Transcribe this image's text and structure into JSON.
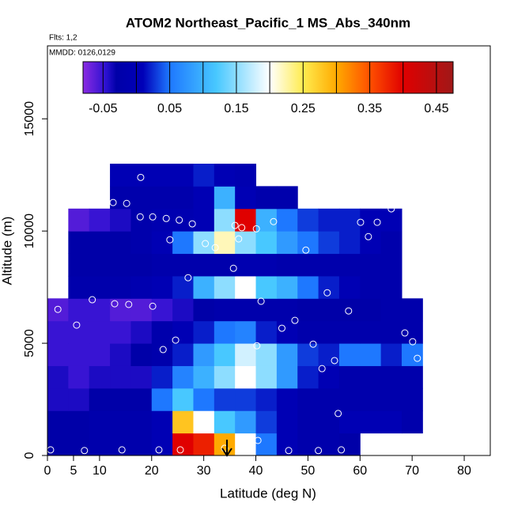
{
  "chart_data": {
    "type": "heatmap",
    "title": "ATOM2 Northeast_Pacific_1 MS_Abs_340nm",
    "notes": [
      "Flts: 1,2",
      "MMDD: 0126,0129"
    ],
    "x_label": "Latitude (deg N)",
    "y_label": "Altitude (m)",
    "xlim": [
      0,
      85
    ],
    "ylim": [
      0,
      18250
    ],
    "xticks": [
      0,
      5,
      10,
      20,
      30,
      40,
      50,
      60,
      70,
      80
    ],
    "yticks": [
      0,
      5000,
      10000,
      15000
    ],
    "clim": [
      -0.08,
      0.475
    ],
    "cticks": [
      -0.05,
      0.05,
      0.15,
      0.25,
      0.35,
      0.45
    ],
    "cdividers": [
      0,
      0.1,
      0.2,
      0.3,
      0.4
    ],
    "colormap": [
      [
        -0.08,
        "#8a2be2"
      ],
      [
        -0.045,
        "#2a10d0"
      ],
      [
        -0.03,
        "#0000a8"
      ],
      [
        0.01,
        "#0000b8"
      ],
      [
        0.05,
        "#1e78ff"
      ],
      [
        0.12,
        "#48c8ff"
      ],
      [
        0.2,
        "#ffffff"
      ],
      [
        0.25,
        "#ffec50"
      ],
      [
        0.3,
        "#ffaa00"
      ],
      [
        0.35,
        "#ff5000"
      ],
      [
        0.4,
        "#e00000"
      ],
      [
        0.475,
        "#a01818"
      ]
    ],
    "x_edges": [
      0,
      4,
      8,
      12,
      16,
      20,
      24,
      28,
      32,
      36,
      40,
      44,
      48,
      52,
      56,
      60,
      64,
      68,
      72
    ],
    "y_edges": [
      0,
      1000,
      2000,
      3000,
      4000,
      5000,
      6000,
      7000,
      8000,
      9000,
      10000,
      11000,
      12000,
      13000
    ],
    "z": [
      [
        -0.03,
        -0.03,
        -0.02,
        -0.02,
        -0.02,
        0.0,
        0.4,
        0.38,
        0.3,
        0.2,
        0.05,
        0.0,
        -0.02,
        -0.02,
        -0.03,
        null,
        null,
        null
      ],
      [
        -0.03,
        -0.03,
        -0.02,
        -0.02,
        -0.02,
        0.0,
        0.28,
        0.2,
        0.12,
        0.08,
        0.03,
        0.0,
        -0.02,
        -0.02,
        0.0,
        0.0,
        0.0,
        -0.02
      ],
      [
        -0.04,
        -0.04,
        -0.03,
        -0.03,
        -0.03,
        0.05,
        0.12,
        0.05,
        0.03,
        0.03,
        0.02,
        0.0,
        -0.02,
        -0.02,
        -0.02,
        -0.02,
        -0.02,
        -0.02
      ],
      [
        -0.04,
        -0.05,
        -0.04,
        -0.04,
        -0.04,
        0.02,
        0.06,
        0.1,
        0.15,
        0.2,
        0.15,
        0.08,
        0.02,
        0.0,
        -0.02,
        -0.02,
        -0.02,
        -0.02
      ],
      [
        -0.05,
        -0.05,
        -0.05,
        -0.04,
        -0.03,
        -0.02,
        0.02,
        0.08,
        0.12,
        0.18,
        0.15,
        0.08,
        0.03,
        0.02,
        0.05,
        0.05,
        0.02,
        0.05
      ],
      [
        -0.05,
        -0.05,
        -0.05,
        -0.05,
        -0.04,
        -0.02,
        0.0,
        0.02,
        0.05,
        0.06,
        0.02,
        0.0,
        -0.02,
        -0.02,
        -0.02,
        -0.02,
        -0.02,
        -0.02
      ],
      [
        -0.06,
        -0.05,
        -0.05,
        -0.06,
        -0.06,
        -0.05,
        -0.04,
        -0.03,
        -0.02,
        -0.02,
        -0.02,
        -0.02,
        -0.03,
        -0.03,
        -0.03,
        -0.03,
        -0.02,
        -0.02
      ],
      [
        null,
        -0.02,
        -0.02,
        -0.02,
        -0.01,
        0.0,
        0.02,
        0.1,
        0.15,
        0.2,
        0.12,
        0.1,
        0.05,
        0.02,
        0.0,
        -0.02,
        -0.02,
        null
      ],
      [
        null,
        -0.03,
        -0.03,
        -0.03,
        -0.03,
        -0.02,
        -0.02,
        -0.02,
        -0.02,
        -0.01,
        -0.01,
        -0.02,
        -0.02,
        -0.02,
        -0.02,
        -0.02,
        -0.02,
        null
      ],
      [
        null,
        -0.03,
        -0.03,
        -0.03,
        -0.02,
        0.0,
        0.05,
        0.15,
        0.22,
        0.15,
        0.12,
        0.08,
        0.05,
        0.03,
        0.02,
        0.0,
        -0.02,
        null
      ],
      [
        null,
        -0.06,
        -0.05,
        -0.04,
        -0.02,
        -0.01,
        -0.01,
        0.0,
        0.15,
        0.4,
        0.1,
        0.05,
        0.03,
        0.02,
        0.02,
        0.0,
        0.0,
        null
      ],
      [
        null,
        null,
        null,
        -0.02,
        -0.02,
        -0.02,
        -0.02,
        0.0,
        0.1,
        0.0,
        -0.02,
        -0.02,
        null,
        null,
        null,
        null,
        null,
        null
      ],
      [
        null,
        null,
        null,
        0.0,
        0.0,
        0.0,
        0.0,
        0.02,
        0.0,
        -0.01,
        null,
        null,
        null,
        null,
        null,
        null,
        null,
        null
      ]
    ],
    "points": {
      "x": [
        17.9,
        11.1,
        4.1,
        4.7,
        7.3,
        10,
        12.6,
        15.2,
        17.8,
        20.2,
        22.8,
        25.3,
        27.8,
        23.5,
        30.3,
        32.2,
        36,
        37.3,
        40.1,
        36.7,
        43.4,
        49.6,
        60.1,
        63.3,
        61.6,
        66,
        35.7,
        27,
        38.5,
        41,
        53.7,
        8.6,
        12.9,
        15.6,
        20.2,
        2,
        57.8,
        5.6,
        47.5,
        45,
        68.6,
        51,
        40.2,
        22.2,
        24.6,
        71,
        70.1,
        55.1,
        52.7,
        55.8,
        40.4,
        70,
        0.6,
        7.1,
        14.3,
        21.4,
        25.5,
        34,
        46.3,
        52,
        56.4
      ],
      "y": [
        12390,
        12150,
        11270,
        11270,
        11270,
        11270,
        11270,
        11230,
        10630,
        10630,
        10560,
        10490,
        10320,
        9610,
        9440,
        9260,
        10250,
        10150,
        10100,
        9650,
        10420,
        9150,
        10390,
        10390,
        9750,
        10990,
        8340,
        7920,
        7320,
        6870,
        7250,
        6940,
        6760,
        6730,
        6650,
        6510,
        6440,
        5810,
        6020,
        5670,
        5460,
        4960,
        4890,
        4720,
        5140,
        4330,
        5070,
        4230,
        3870,
        1870,
        670,
        700,
        250,
        220,
        250,
        250,
        250,
        320,
        220,
        220,
        250
      ],
      "color": "#ffffff"
    }
  }
}
